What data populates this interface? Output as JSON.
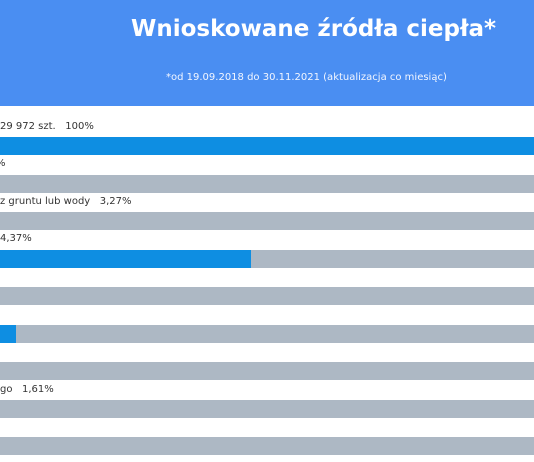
{
  "header": {
    "title": "Wnioskowane źródła ciepła*",
    "subtitle": "*od 19.09.2018 do 30.11.2021 (aktualizacja co miesiąc)"
  },
  "rows": [
    {
      "label": "29 972 szt.   100%"
    },
    {
      "label": "%"
    },
    {
      "label": "z gruntu lub wody   3,27%"
    },
    {
      "label": "4,37%"
    },
    {
      "label": "go   1,61%"
    }
  ]
}
